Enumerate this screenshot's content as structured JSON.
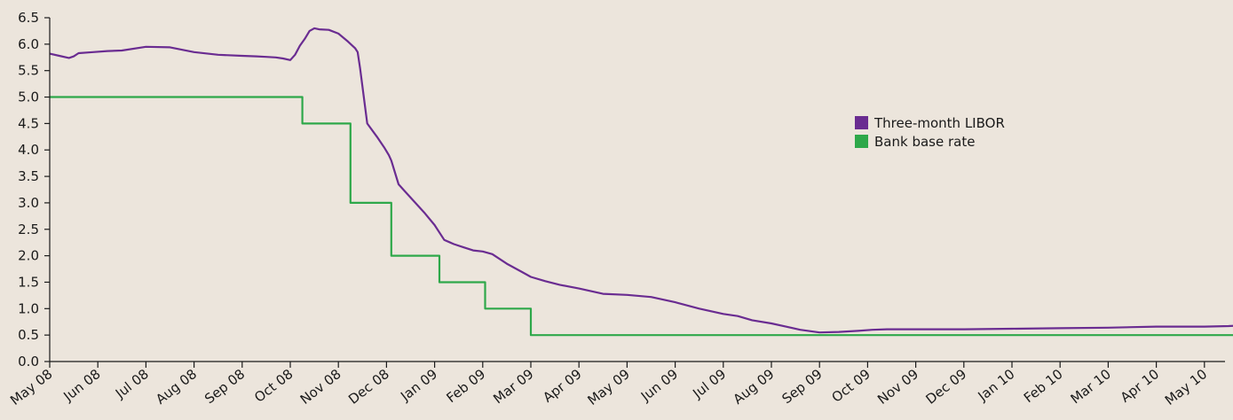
{
  "chart_data": {
    "type": "line",
    "title": "",
    "xlabel": "",
    "ylabel": "",
    "ylim": [
      0,
      6.5
    ],
    "y_ticks": [
      "0.0",
      "0.5",
      "1.0",
      "1.5",
      "2.0",
      "2.5",
      "3.0",
      "3.5",
      "4.0",
      "4.5",
      "5.0",
      "5.5",
      "6.0",
      "6.5"
    ],
    "x_ticks": [
      "May 08",
      "Jun 08",
      "Jul 08",
      "Aug 08",
      "Sep 08",
      "Oct 08",
      "Nov 08",
      "Dec 08",
      "Jan 09",
      "Feb 09",
      "Mar 09",
      "Apr 09",
      "May 09",
      "Jun 09",
      "Jul 09",
      "Aug 09",
      "Sep 09",
      "Oct 09",
      "Nov 09",
      "Dec 09",
      "Jan 10",
      "Feb 10",
      "Mar 10",
      "Apr 10",
      "May 10"
    ],
    "x_range_months": [
      0,
      25.4
    ],
    "grid": false,
    "legend_position": "right",
    "colors": {
      "libor": "#6a2c91",
      "base": "#2ea84a",
      "axis": "#1a1a1a",
      "background": "#ece5dc"
    },
    "series": [
      {
        "name": "Three-month LIBOR",
        "x": [
          0,
          0.2,
          0.4,
          0.5,
          0.6,
          0.9,
          1.2,
          1.5,
          2.0,
          2.5,
          3.0,
          3.5,
          4.0,
          4.3,
          4.5,
          4.7,
          4.85,
          5.0,
          5.1,
          5.2,
          5.3,
          5.4,
          5.5,
          5.6,
          5.8,
          6.0,
          6.2,
          6.35,
          6.4,
          6.45,
          6.6,
          6.8,
          6.95,
          7.05,
          7.1,
          7.25,
          7.4,
          7.6,
          7.8,
          8.0,
          8.2,
          8.4,
          8.6,
          8.8,
          9.0,
          9.2,
          9.5,
          9.8,
          10.0,
          10.3,
          10.6,
          11.0,
          11.5,
          12.0,
          12.5,
          13.0,
          13.5,
          14.0,
          14.3,
          14.6,
          15.0,
          15.3,
          15.6,
          16.0,
          16.4,
          16.8,
          17.1,
          17.4,
          17.8,
          18.3,
          19.0,
          20.0,
          21.0,
          22.0,
          22.5,
          23.0,
          23.5,
          24.0,
          24.5,
          25.0,
          25.4
        ],
        "y": [
          5.82,
          5.78,
          5.74,
          5.77,
          5.83,
          5.85,
          5.87,
          5.88,
          5.95,
          5.94,
          5.85,
          5.8,
          5.78,
          5.77,
          5.76,
          5.75,
          5.73,
          5.7,
          5.8,
          5.97,
          6.1,
          6.25,
          6.3,
          6.28,
          6.27,
          6.2,
          6.05,
          5.92,
          5.85,
          5.55,
          4.5,
          4.25,
          4.05,
          3.9,
          3.8,
          3.35,
          3.2,
          3.0,
          2.8,
          2.58,
          2.3,
          2.22,
          2.16,
          2.1,
          2.08,
          2.03,
          1.85,
          1.7,
          1.6,
          1.52,
          1.45,
          1.38,
          1.28,
          1.26,
          1.22,
          1.12,
          1.0,
          0.9,
          0.86,
          0.78,
          0.72,
          0.66,
          0.6,
          0.55,
          0.56,
          0.58,
          0.6,
          0.61,
          0.61,
          0.61,
          0.61,
          0.62,
          0.63,
          0.64,
          0.65,
          0.66,
          0.66,
          0.66,
          0.67,
          0.69,
          0.7
        ]
      },
      {
        "name": "Bank base rate",
        "x": [
          0,
          5.25,
          5.25,
          6.25,
          6.25,
          7.1,
          7.1,
          8.1,
          8.1,
          9.05,
          9.05,
          10.0,
          10.0,
          25.4
        ],
        "y": [
          5.0,
          5.0,
          4.5,
          4.5,
          3.0,
          3.0,
          2.0,
          2.0,
          1.5,
          1.5,
          1.0,
          1.0,
          0.5,
          0.5
        ]
      }
    ]
  }
}
